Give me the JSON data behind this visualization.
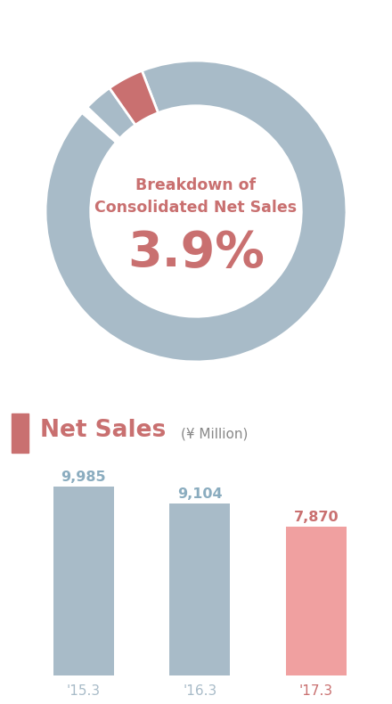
{
  "donut_slices": [
    92.2,
    0.8,
    3.1,
    3.9
  ],
  "donut_colors": [
    "#a8bbc8",
    "#ffffff",
    "#a8bbc8",
    "#c97070"
  ],
  "donut_center_title": "Breakdown of\nConsolidated Net Sales",
  "donut_center_value": "3.9%",
  "donut_text_color": "#c97070",
  "bar_categories": [
    "'15.3",
    "'16.3",
    "'17.3"
  ],
  "bar_values": [
    9985,
    9104,
    7870
  ],
  "bar_colors": [
    "#a8bbc8",
    "#a8bbc8",
    "#f0a0a0"
  ],
  "bar_value_colors": [
    "#8aacbf",
    "#8aacbf",
    "#c97070"
  ],
  "bar_label_colors": [
    "#a8bbc8",
    "#a8bbc8",
    "#c97070"
  ],
  "section_title": "Net Sales",
  "section_subtitle": "(¥ Million)",
  "section_title_color": "#c97070",
  "section_subtitle_color": "#888888",
  "section_marker_color": "#c97070",
  "background_color": "#ffffff",
  "ylim": [
    0,
    11500
  ]
}
